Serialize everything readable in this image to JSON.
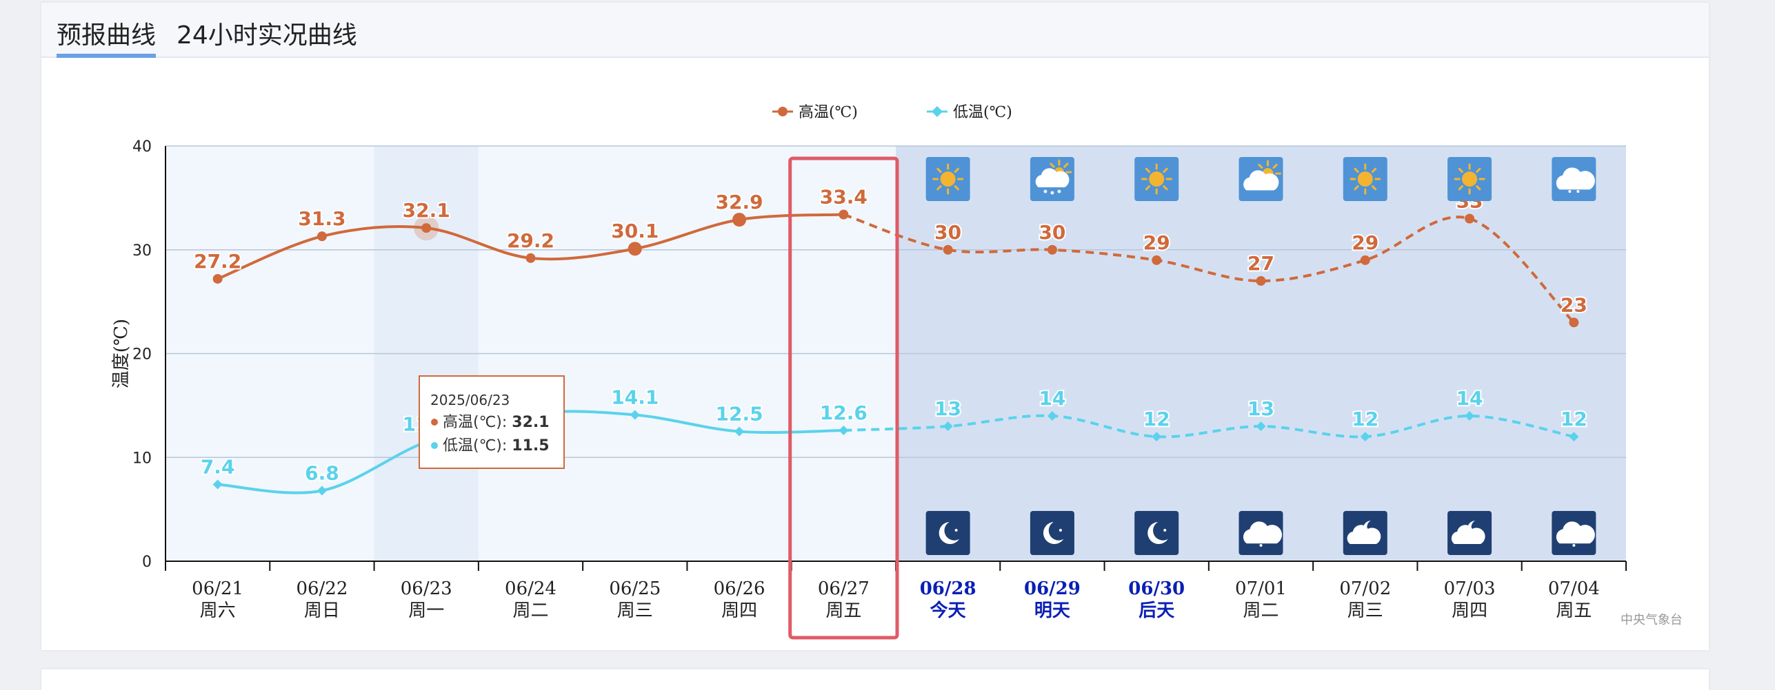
{
  "tabs": [
    {
      "label": "预报曲线",
      "active": true
    },
    {
      "label": "24小时实况曲线",
      "active": false
    }
  ],
  "source_label": "中央气象台",
  "chart_data": {
    "type": "line",
    "ylabel": "温度(℃)",
    "ylim": [
      0,
      40
    ],
    "yticks": [
      0,
      10,
      20,
      30,
      40
    ],
    "grid": true,
    "legend_position": "top-center",
    "categories": [
      {
        "date": "06/21",
        "day": "周六"
      },
      {
        "date": "06/22",
        "day": "周日"
      },
      {
        "date": "06/23",
        "day": "周一"
      },
      {
        "date": "06/24",
        "day": "周二"
      },
      {
        "date": "06/25",
        "day": "周三"
      },
      {
        "date": "06/26",
        "day": "周四"
      },
      {
        "date": "06/27",
        "day": "周五"
      },
      {
        "date": "06/28",
        "day": "今天"
      },
      {
        "date": "06/29",
        "day": "明天"
      },
      {
        "date": "06/30",
        "day": "后天"
      },
      {
        "date": "07/01",
        "day": "周二"
      },
      {
        "date": "07/02",
        "day": "周三"
      },
      {
        "date": "07/03",
        "day": "周四"
      },
      {
        "date": "07/04",
        "day": "周五"
      }
    ],
    "highlight_category_labels": [
      7,
      8,
      9
    ],
    "forecast_start_index": 7,
    "hovered_index": 2,
    "boxed_index": 6,
    "series": [
      {
        "name": "高温(℃)",
        "color": "#d0693b",
        "values": [
          27.2,
          31.3,
          32.1,
          29.2,
          30.1,
          32.9,
          33.4,
          30,
          30,
          29,
          27,
          29,
          33,
          23
        ],
        "labels": [
          "27.2",
          "31.3",
          "32.1",
          "29.2",
          "30.1",
          "32.9",
          "33.4",
          "30",
          "30",
          "29",
          "27",
          "29",
          "33",
          "23"
        ]
      },
      {
        "name": "低温(℃)",
        "color": "#5bd2ec",
        "values": [
          7.4,
          6.8,
          11.5,
          14.2,
          14.1,
          12.5,
          12.6,
          13,
          14,
          12,
          13,
          12,
          14,
          12
        ],
        "labels": [
          "7.4",
          "6.8",
          "11.5",
          "",
          "14.1",
          "12.5",
          "12.6",
          "13",
          "14",
          "12",
          "13",
          "12",
          "14",
          "12"
        ]
      }
    ],
    "day_icons": [
      "sunny-icon",
      "snow-rain-icon",
      "sunny-icon",
      "partly-cloudy-icon",
      "sunny-icon",
      "sunny-icon",
      "cloudy-icon"
    ],
    "night_icons": [
      "moon-icon",
      "moon-icon",
      "moon-icon",
      "cloudy-night-icon",
      "cloud-moon-icon",
      "cloud-moon-icon",
      "cloudy-night-icon"
    ],
    "tooltip": {
      "date": "2025/06/23",
      "rows": [
        {
          "name": "高温(℃)",
          "value": "32.1"
        },
        {
          "name": "低温(℃)",
          "value": "11.5"
        }
      ]
    }
  }
}
